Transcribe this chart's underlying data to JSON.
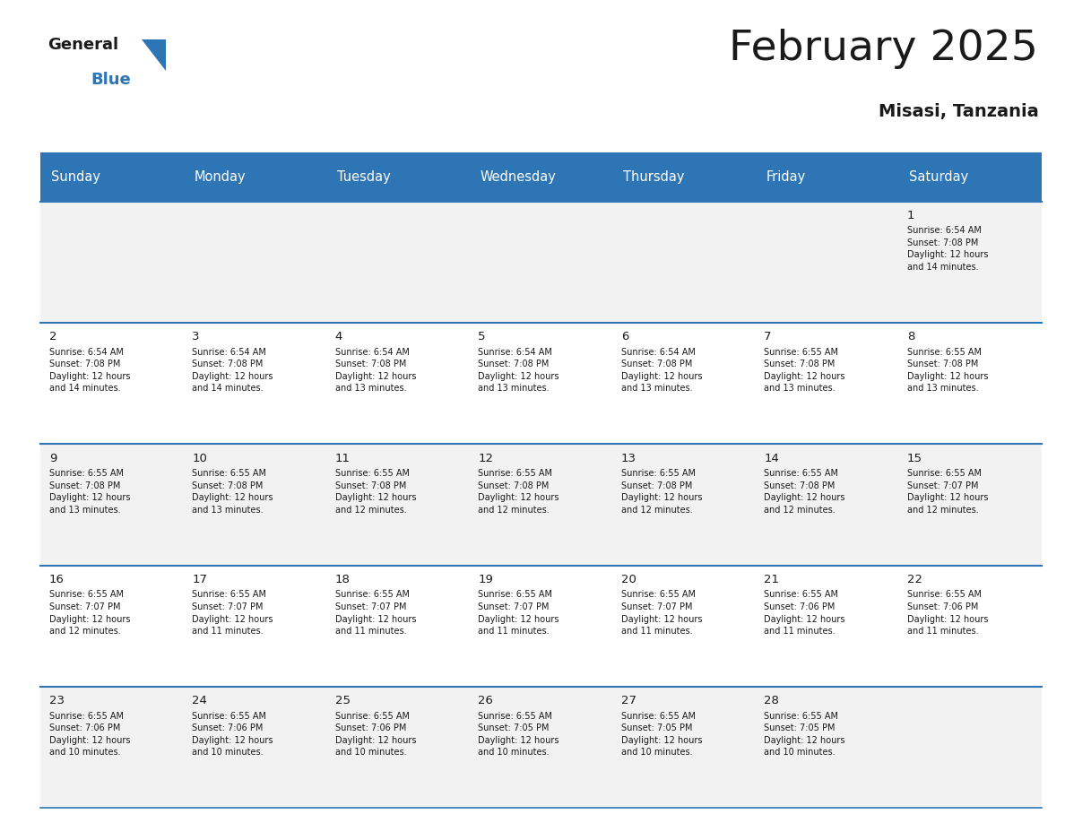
{
  "title": "February 2025",
  "subtitle": "Misasi, Tanzania",
  "header_color": "#2E75B6",
  "header_text_color": "#FFFFFF",
  "cell_bg_light": "#F2F2F2",
  "cell_bg_white": "#FFFFFF",
  "grid_line_color": "#2E75B6",
  "text_color": "#1a1a1a",
  "days_of_week": [
    "Sunday",
    "Monday",
    "Tuesday",
    "Wednesday",
    "Thursday",
    "Friday",
    "Saturday"
  ],
  "calendar_data": [
    [
      null,
      null,
      null,
      null,
      null,
      null,
      {
        "day": 1,
        "sunrise": "6:54 AM",
        "sunset": "7:08 PM",
        "daylight": "12 hours\nand 14 minutes."
      }
    ],
    [
      {
        "day": 2,
        "sunrise": "6:54 AM",
        "sunset": "7:08 PM",
        "daylight": "12 hours\nand 14 minutes."
      },
      {
        "day": 3,
        "sunrise": "6:54 AM",
        "sunset": "7:08 PM",
        "daylight": "12 hours\nand 14 minutes."
      },
      {
        "day": 4,
        "sunrise": "6:54 AM",
        "sunset": "7:08 PM",
        "daylight": "12 hours\nand 13 minutes."
      },
      {
        "day": 5,
        "sunrise": "6:54 AM",
        "sunset": "7:08 PM",
        "daylight": "12 hours\nand 13 minutes."
      },
      {
        "day": 6,
        "sunrise": "6:54 AM",
        "sunset": "7:08 PM",
        "daylight": "12 hours\nand 13 minutes."
      },
      {
        "day": 7,
        "sunrise": "6:55 AM",
        "sunset": "7:08 PM",
        "daylight": "12 hours\nand 13 minutes."
      },
      {
        "day": 8,
        "sunrise": "6:55 AM",
        "sunset": "7:08 PM",
        "daylight": "12 hours\nand 13 minutes."
      }
    ],
    [
      {
        "day": 9,
        "sunrise": "6:55 AM",
        "sunset": "7:08 PM",
        "daylight": "12 hours\nand 13 minutes."
      },
      {
        "day": 10,
        "sunrise": "6:55 AM",
        "sunset": "7:08 PM",
        "daylight": "12 hours\nand 13 minutes."
      },
      {
        "day": 11,
        "sunrise": "6:55 AM",
        "sunset": "7:08 PM",
        "daylight": "12 hours\nand 12 minutes."
      },
      {
        "day": 12,
        "sunrise": "6:55 AM",
        "sunset": "7:08 PM",
        "daylight": "12 hours\nand 12 minutes."
      },
      {
        "day": 13,
        "sunrise": "6:55 AM",
        "sunset": "7:08 PM",
        "daylight": "12 hours\nand 12 minutes."
      },
      {
        "day": 14,
        "sunrise": "6:55 AM",
        "sunset": "7:08 PM",
        "daylight": "12 hours\nand 12 minutes."
      },
      {
        "day": 15,
        "sunrise": "6:55 AM",
        "sunset": "7:07 PM",
        "daylight": "12 hours\nand 12 minutes."
      }
    ],
    [
      {
        "day": 16,
        "sunrise": "6:55 AM",
        "sunset": "7:07 PM",
        "daylight": "12 hours\nand 12 minutes."
      },
      {
        "day": 17,
        "sunrise": "6:55 AM",
        "sunset": "7:07 PM",
        "daylight": "12 hours\nand 11 minutes."
      },
      {
        "day": 18,
        "sunrise": "6:55 AM",
        "sunset": "7:07 PM",
        "daylight": "12 hours\nand 11 minutes."
      },
      {
        "day": 19,
        "sunrise": "6:55 AM",
        "sunset": "7:07 PM",
        "daylight": "12 hours\nand 11 minutes."
      },
      {
        "day": 20,
        "sunrise": "6:55 AM",
        "sunset": "7:07 PM",
        "daylight": "12 hours\nand 11 minutes."
      },
      {
        "day": 21,
        "sunrise": "6:55 AM",
        "sunset": "7:06 PM",
        "daylight": "12 hours\nand 11 minutes."
      },
      {
        "day": 22,
        "sunrise": "6:55 AM",
        "sunset": "7:06 PM",
        "daylight": "12 hours\nand 11 minutes."
      }
    ],
    [
      {
        "day": 23,
        "sunrise": "6:55 AM",
        "sunset": "7:06 PM",
        "daylight": "12 hours\nand 10 minutes."
      },
      {
        "day": 24,
        "sunrise": "6:55 AM",
        "sunset": "7:06 PM",
        "daylight": "12 hours\nand 10 minutes."
      },
      {
        "day": 25,
        "sunrise": "6:55 AM",
        "sunset": "7:06 PM",
        "daylight": "12 hours\nand 10 minutes."
      },
      {
        "day": 26,
        "sunrise": "6:55 AM",
        "sunset": "7:05 PM",
        "daylight": "12 hours\nand 10 minutes."
      },
      {
        "day": 27,
        "sunrise": "6:55 AM",
        "sunset": "7:05 PM",
        "daylight": "12 hours\nand 10 minutes."
      },
      {
        "day": 28,
        "sunrise": "6:55 AM",
        "sunset": "7:05 PM",
        "daylight": "12 hours\nand 10 minutes."
      },
      null
    ]
  ]
}
